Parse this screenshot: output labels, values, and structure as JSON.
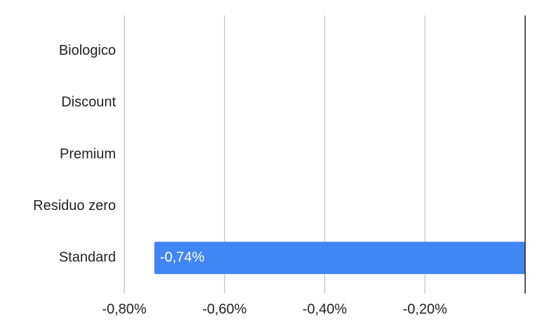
{
  "chart_data": {
    "type": "bar",
    "orientation": "horizontal",
    "categories": [
      "Biologico",
      "Discount",
      "Premium",
      "Residuo zero",
      "Standard"
    ],
    "values": [
      0,
      0,
      0,
      0,
      -0.74
    ],
    "value_labels": [
      null,
      null,
      null,
      null,
      "-0,74%"
    ],
    "color": "#4285f4",
    "xlim": [
      -0.8,
      0
    ],
    "xticks": [
      {
        "value": -0.8,
        "label": "-0,80%"
      },
      {
        "value": -0.6,
        "label": "-0,60%"
      },
      {
        "value": -0.4,
        "label": "-0,40%"
      },
      {
        "value": -0.2,
        "label": "-0,20%"
      }
    ],
    "grid": true
  }
}
